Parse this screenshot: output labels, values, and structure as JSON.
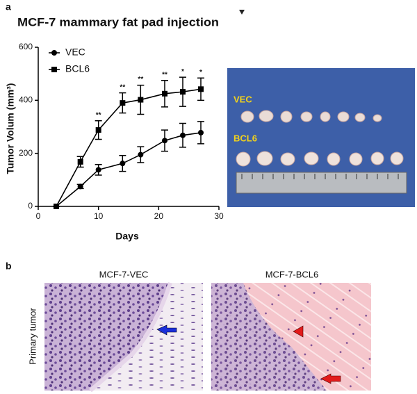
{
  "panel_a": {
    "label": "a"
  },
  "chart_data": {
    "type": "line",
    "title": "MCF-7 mammary fat pad injection",
    "xlabel": "Days",
    "ylabel": "Tumor Volum (mm³)",
    "x": [
      3,
      7,
      10,
      14,
      17,
      21,
      24,
      27
    ],
    "xlim": [
      0,
      30
    ],
    "xticks": [
      0,
      10,
      20,
      30
    ],
    "ylim": [
      0,
      600
    ],
    "yticks": [
      0,
      200,
      400,
      600
    ],
    "legend": "upper left",
    "series": [
      {
        "name": "VEC",
        "color": "#000000",
        "marker": "circle",
        "values": [
          0,
          75,
          138,
          162,
          195,
          248,
          268,
          278
        ],
        "errors": [
          0,
          8,
          20,
          30,
          30,
          40,
          45,
          42
        ]
      },
      {
        "name": "BCL6",
        "color": "#000000",
        "marker": "square",
        "values": [
          0,
          168,
          288,
          390,
          402,
          425,
          432,
          442
        ],
        "errors": [
          0,
          20,
          35,
          38,
          55,
          50,
          55,
          42
        ]
      }
    ],
    "annotations": [
      {
        "x": 10,
        "text": "**"
      },
      {
        "x": 14,
        "text": "**"
      },
      {
        "x": 17,
        "text": "**"
      },
      {
        "x": 21,
        "text": "**"
      },
      {
        "x": 24,
        "text": "*"
      },
      {
        "x": 27,
        "text": "*"
      }
    ]
  },
  "photo": {
    "labels": [
      "VEC",
      "BCL6"
    ]
  },
  "panel_b": {
    "label": "b",
    "columns": [
      "MCF-7-VEC",
      "MCF-7-BCL6"
    ],
    "row_label": "Primary tumor"
  }
}
